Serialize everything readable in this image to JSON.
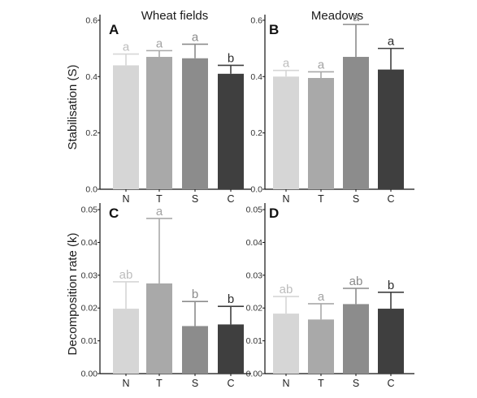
{
  "figure": {
    "column_titles": [
      "Wheat fields",
      "Meadows"
    ],
    "row_ylabels": [
      "Stabilisation (S)",
      "Decomposition rate (k)"
    ]
  },
  "chart_data": [
    {
      "panel": "A",
      "type": "bar",
      "column_title": "Wheat fields",
      "ylabel": "Stabilisation (S)",
      "categories": [
        "N",
        "T",
        "S",
        "C"
      ],
      "values": [
        0.44,
        0.47,
        0.465,
        0.41
      ],
      "errors": [
        0.04,
        0.022,
        0.05,
        0.03
      ],
      "letters": [
        "a",
        "a",
        "a",
        "b"
      ],
      "colors": [
        "#d6d6d6",
        "#a9a9a9",
        "#8c8c8c",
        "#3f3f3f"
      ],
      "letter_colors": [
        "#bdbdbd",
        "#a3a3a3",
        "#8a8a8a",
        "#2b2b2b"
      ],
      "yticks": [
        "0.0",
        "0.2",
        "0.4",
        "0.6"
      ],
      "ylim": [
        0,
        0.62
      ],
      "grid": false
    },
    {
      "panel": "B",
      "type": "bar",
      "column_title": "Meadows",
      "ylabel": "",
      "categories": [
        "N",
        "T",
        "S",
        "C"
      ],
      "values": [
        0.4,
        0.395,
        0.47,
        0.425
      ],
      "errors": [
        0.022,
        0.022,
        0.115,
        0.075
      ],
      "letters": [
        "a",
        "a",
        "a",
        "a"
      ],
      "colors": [
        "#d6d6d6",
        "#a9a9a9",
        "#8c8c8c",
        "#3f3f3f"
      ],
      "letter_colors": [
        "#bdbdbd",
        "#a3a3a3",
        "#8a8a8a",
        "#2b2b2b"
      ],
      "yticks": [
        "0.0",
        "0.2",
        "0.4",
        "0.6"
      ],
      "ylim": [
        0,
        0.62
      ],
      "grid": false
    },
    {
      "panel": "C",
      "type": "bar",
      "column_title": "",
      "ylabel": "Decomposition rate (k)",
      "categories": [
        "N",
        "T",
        "S",
        "C"
      ],
      "values": [
        0.0198,
        0.0275,
        0.0145,
        0.015
      ],
      "errors": [
        0.0082,
        0.0198,
        0.0075,
        0.0055
      ],
      "letters": [
        "ab",
        "a",
        "b",
        "b"
      ],
      "colors": [
        "#d6d6d6",
        "#a9a9a9",
        "#8c8c8c",
        "#3f3f3f"
      ],
      "letter_colors": [
        "#bdbdbd",
        "#a3a3a3",
        "#8a8a8a",
        "#2b2b2b"
      ],
      "yticks": [
        "0.00",
        "0.01",
        "0.02",
        "0.03",
        "0.04",
        "0.05"
      ],
      "ylim": [
        0,
        0.052
      ],
      "grid": false
    },
    {
      "panel": "D",
      "type": "bar",
      "column_title": "",
      "ylabel": "",
      "categories": [
        "N",
        "T",
        "S",
        "C"
      ],
      "values": [
        0.0183,
        0.0165,
        0.0212,
        0.0198
      ],
      "errors": [
        0.0052,
        0.0048,
        0.0048,
        0.005
      ],
      "letters": [
        "ab",
        "a",
        "ab",
        "b"
      ],
      "colors": [
        "#d6d6d6",
        "#a9a9a9",
        "#8c8c8c",
        "#3f3f3f"
      ],
      "letter_colors": [
        "#bdbdbd",
        "#a3a3a3",
        "#8a8a8a",
        "#2b2b2b"
      ],
      "yticks": [
        "0.00",
        "0.01",
        "0.02",
        "0.03",
        "0.04",
        "0.05"
      ],
      "ylim": [
        0,
        0.052
      ],
      "grid": false
    }
  ]
}
